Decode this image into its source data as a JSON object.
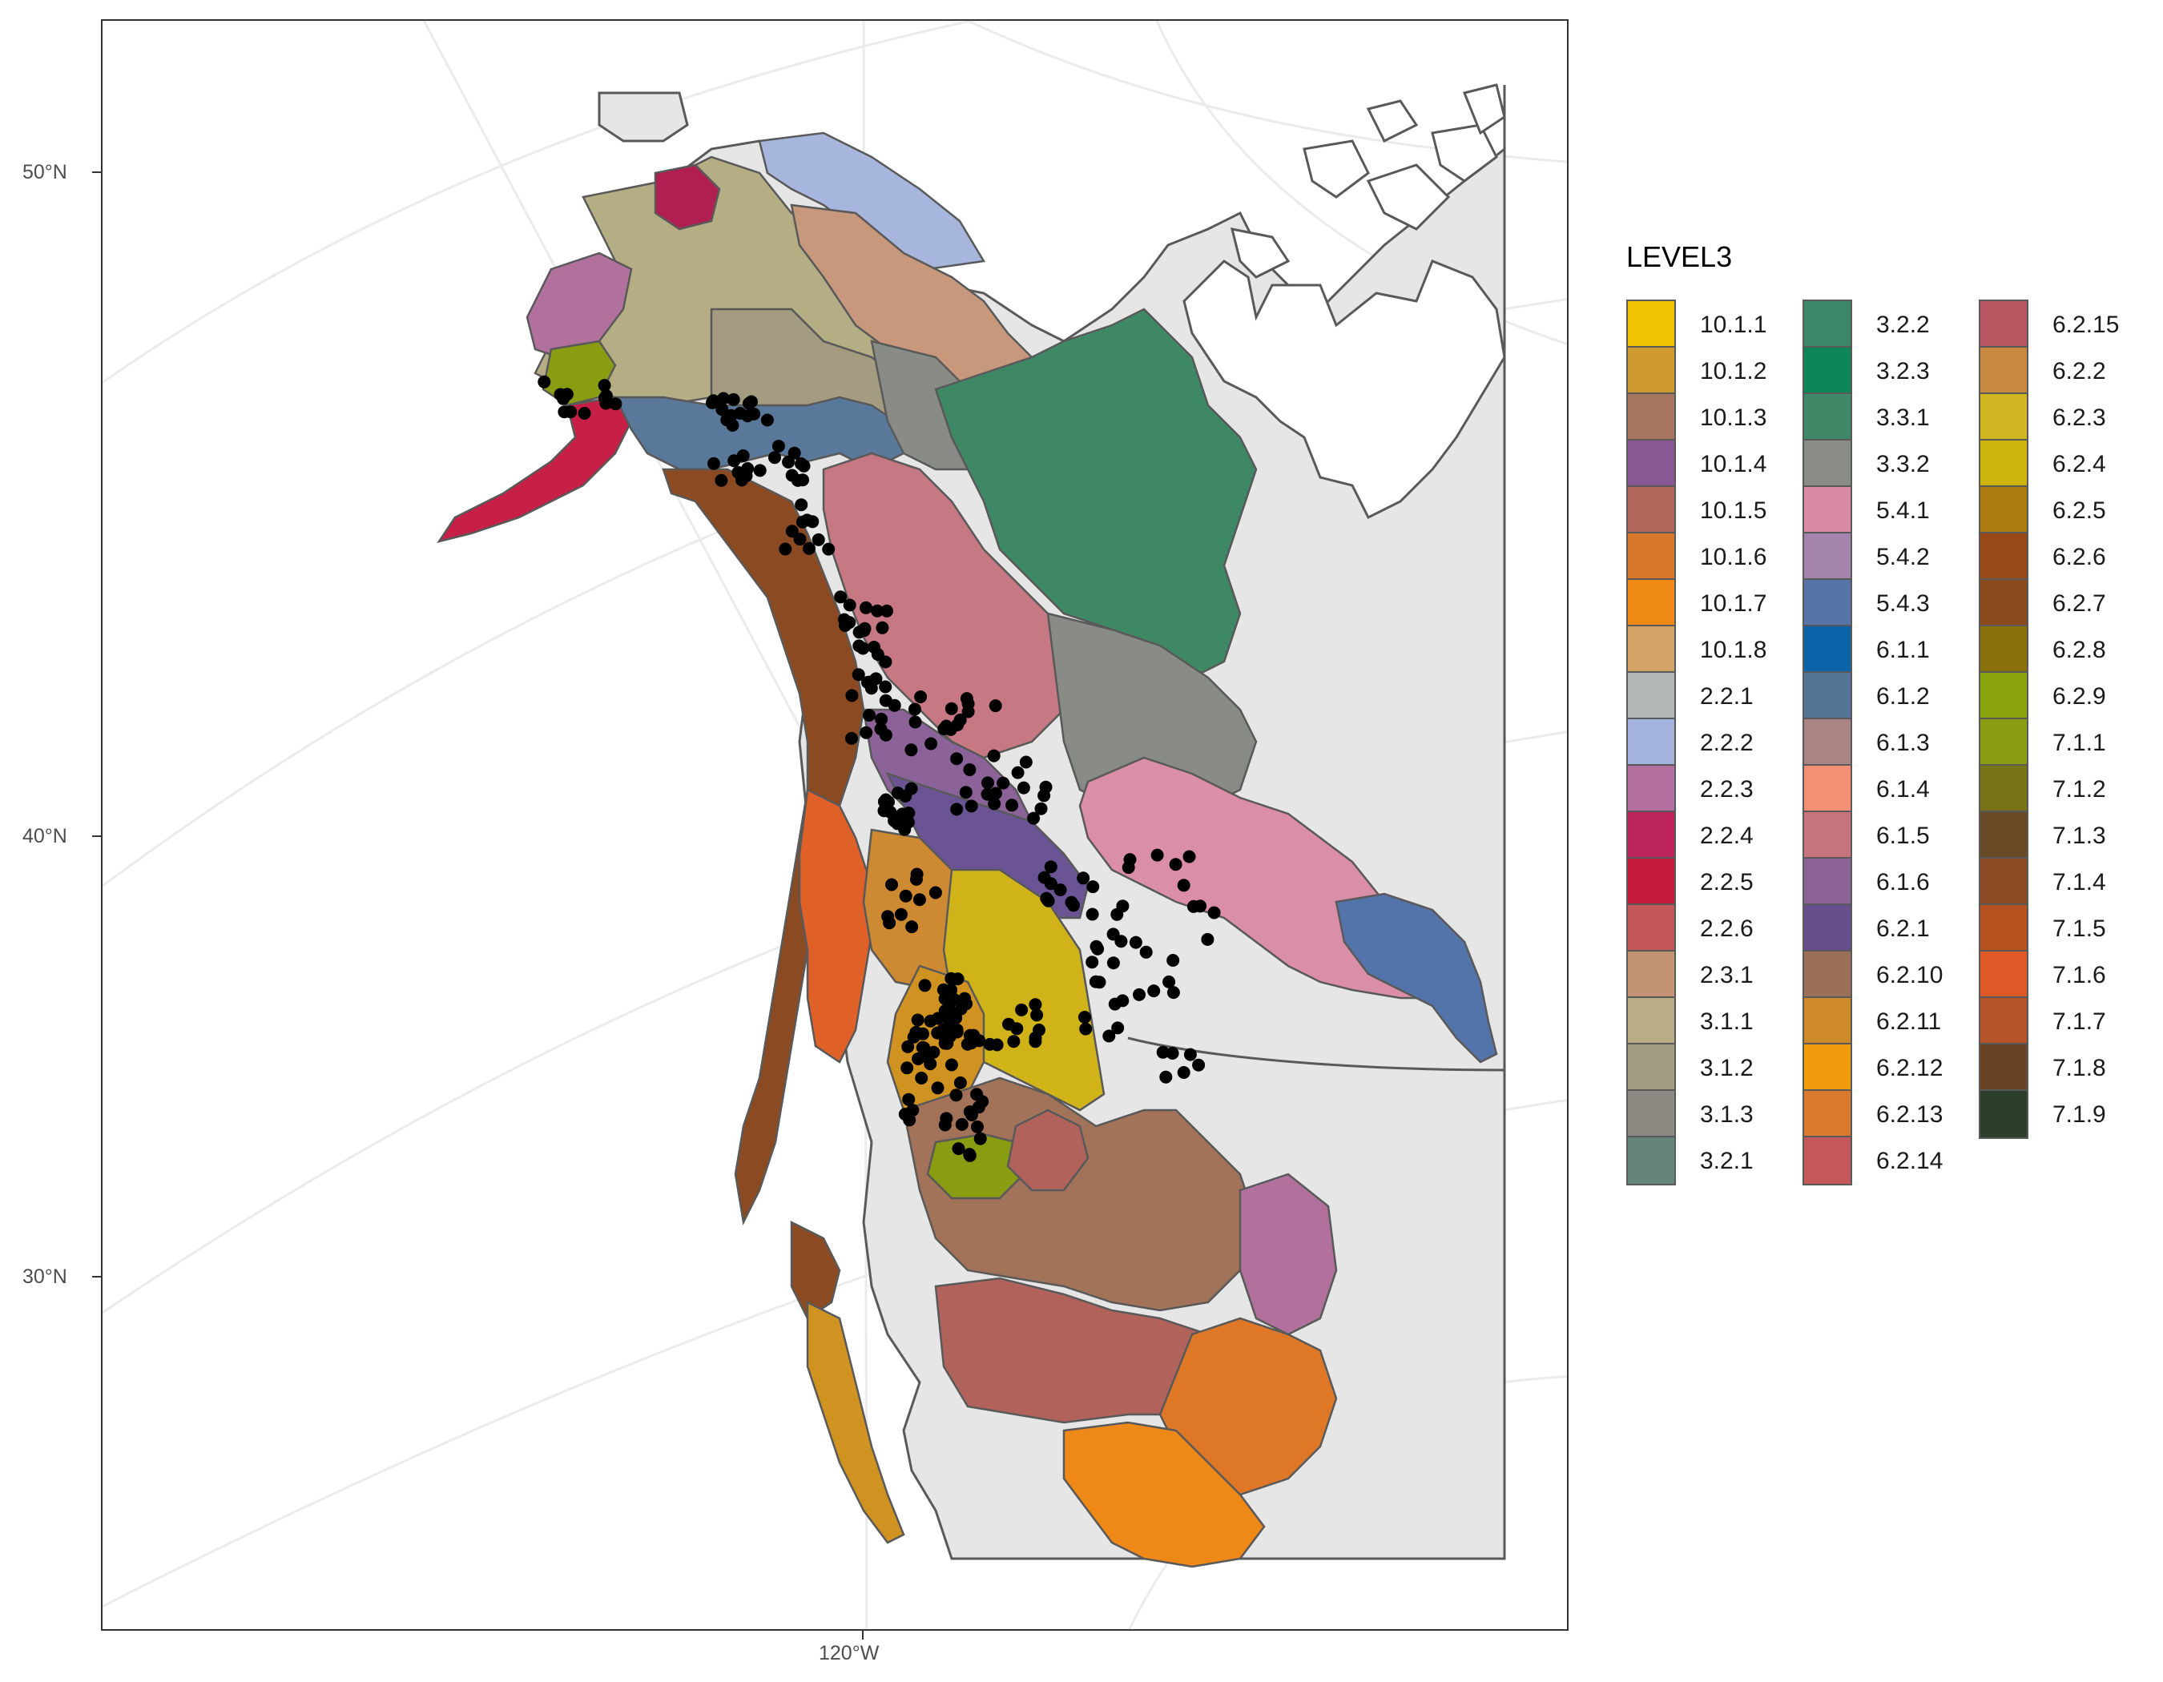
{
  "map": {
    "axes": {
      "x_ticks": [
        {
          "label": "120°W"
        }
      ],
      "y_ticks": [
        {
          "label": "50°N"
        },
        {
          "label": "40°N"
        },
        {
          "label": "30°N"
        }
      ]
    },
    "colors": {
      "background_land": "#e6e6e6",
      "outline": "#595959",
      "graticule": "#ebebeb",
      "points": "#000000"
    },
    "region_fill": {
      "alaska_north": "#b5ad84",
      "yukon": "#a39c80",
      "arctic_coast": "#a7b6dd",
      "mackenzie": "#c7987b",
      "peninsula": "#c71f45",
      "western_alaska": "#b2719d",
      "seward": "#b11e52",
      "bristol": "#8a9c12",
      "interior_plateau": "#59789a",
      "coast_range": "#8b4a21",
      "cordillera": "#c67883",
      "boreal_plains": "#3f8866",
      "taiga": "#898b86",
      "columbia": "#8b6399",
      "rocky": "#6a5494",
      "prairie": "#db8ea7",
      "great_plains": "#5374aa",
      "sierra": "#e06128",
      "great_basin": "#d0b219",
      "cascades": "#ce8a32",
      "colorado": "#a27259",
      "chihuahua": "#b1635b",
      "madre": "#de7827",
      "gulf": "#ee8817",
      "baja": "#d09321"
    },
    "points": []
  },
  "legend": {
    "title": "LEVEL3",
    "columns": [
      [
        {
          "label": "10.1.1",
          "color": "#f2c300"
        },
        {
          "label": "10.1.2",
          "color": "#cf9b30"
        },
        {
          "label": "10.1.3",
          "color": "#a67660"
        },
        {
          "label": "10.1.4",
          "color": "#895793"
        },
        {
          "label": "10.1.5",
          "color": "#b1675b"
        },
        {
          "label": "10.1.6",
          "color": "#d9772a"
        },
        {
          "label": "10.1.7",
          "color": "#f08a17"
        },
        {
          "label": "10.1.8",
          "color": "#d4a366"
        },
        {
          "label": "2.2.1",
          "color": "#b4b8b6"
        },
        {
          "label": "2.2.2",
          "color": "#a3b3de"
        },
        {
          "label": "2.2.3",
          "color": "#b26fa0"
        },
        {
          "label": "2.2.4",
          "color": "#bc235a"
        },
        {
          "label": "2.2.5",
          "color": "#c61a3c"
        },
        {
          "label": "2.2.6",
          "color": "#c55659"
        },
        {
          "label": "2.3.1",
          "color": "#c49373"
        },
        {
          "label": "3.1.1",
          "color": "#b8ad84"
        },
        {
          "label": "3.1.2",
          "color": "#a39d84"
        },
        {
          "label": "3.1.3",
          "color": "#8d8a84"
        },
        {
          "label": "3.2.1",
          "color": "#66857a"
        }
      ],
      [
        {
          "label": "3.2.2",
          "color": "#3c876a"
        },
        {
          "label": "3.2.3",
          "color": "#0f8659"
        },
        {
          "label": "3.3.1",
          "color": "#3f8968"
        },
        {
          "label": "3.3.2",
          "color": "#8a8c88"
        },
        {
          "label": "5.4.1",
          "color": "#d98ba6"
        },
        {
          "label": "5.4.2",
          "color": "#a584ad"
        },
        {
          "label": "5.4.3",
          "color": "#5774a9"
        },
        {
          "label": "6.1.1",
          "color": "#0b63a8"
        },
        {
          "label": "6.1.2",
          "color": "#557597"
        },
        {
          "label": "6.1.3",
          "color": "#a88584"
        },
        {
          "label": "6.1.4",
          "color": "#f48f76"
        },
        {
          "label": "6.1.5",
          "color": "#c8747f"
        },
        {
          "label": "6.1.6",
          "color": "#8c6397"
        },
        {
          "label": "6.2.1",
          "color": "#674f8e"
        },
        {
          "label": "6.2.10",
          "color": "#9a7058"
        },
        {
          "label": "6.2.11",
          "color": "#cf8a2c"
        },
        {
          "label": "6.2.12",
          "color": "#f19b0d"
        },
        {
          "label": "6.2.13",
          "color": "#da7a2f"
        },
        {
          "label": "6.2.14",
          "color": "#c4585b"
        }
      ],
      [
        {
          "label": "6.2.15",
          "color": "#b85761"
        },
        {
          "label": "6.2.2",
          "color": "#c88a41"
        },
        {
          "label": "6.2.3",
          "color": "#d2b722"
        },
        {
          "label": "6.2.4",
          "color": "#cdb40f"
        },
        {
          "label": "6.2.5",
          "color": "#ad7b10"
        },
        {
          "label": "6.2.6",
          "color": "#984918"
        },
        {
          "label": "6.2.7",
          "color": "#8a4a1c"
        },
        {
          "label": "6.2.8",
          "color": "#8a700a"
        },
        {
          "label": "6.2.9",
          "color": "#8aa50e"
        },
        {
          "label": "7.1.1",
          "color": "#8a9d12"
        },
        {
          "label": "7.1.2",
          "color": "#787317"
        },
        {
          "label": "7.1.3",
          "color": "#684a26"
        },
        {
          "label": "7.1.4",
          "color": "#8c4b24"
        },
        {
          "label": "7.1.5",
          "color": "#b6521f"
        },
        {
          "label": "7.1.6",
          "color": "#df5927"
        },
        {
          "label": "7.1.7",
          "color": "#b5532b"
        },
        {
          "label": "7.1.8",
          "color": "#6a4324"
        },
        {
          "label": "7.1.9",
          "color": "#2c3f2a"
        }
      ]
    ]
  }
}
